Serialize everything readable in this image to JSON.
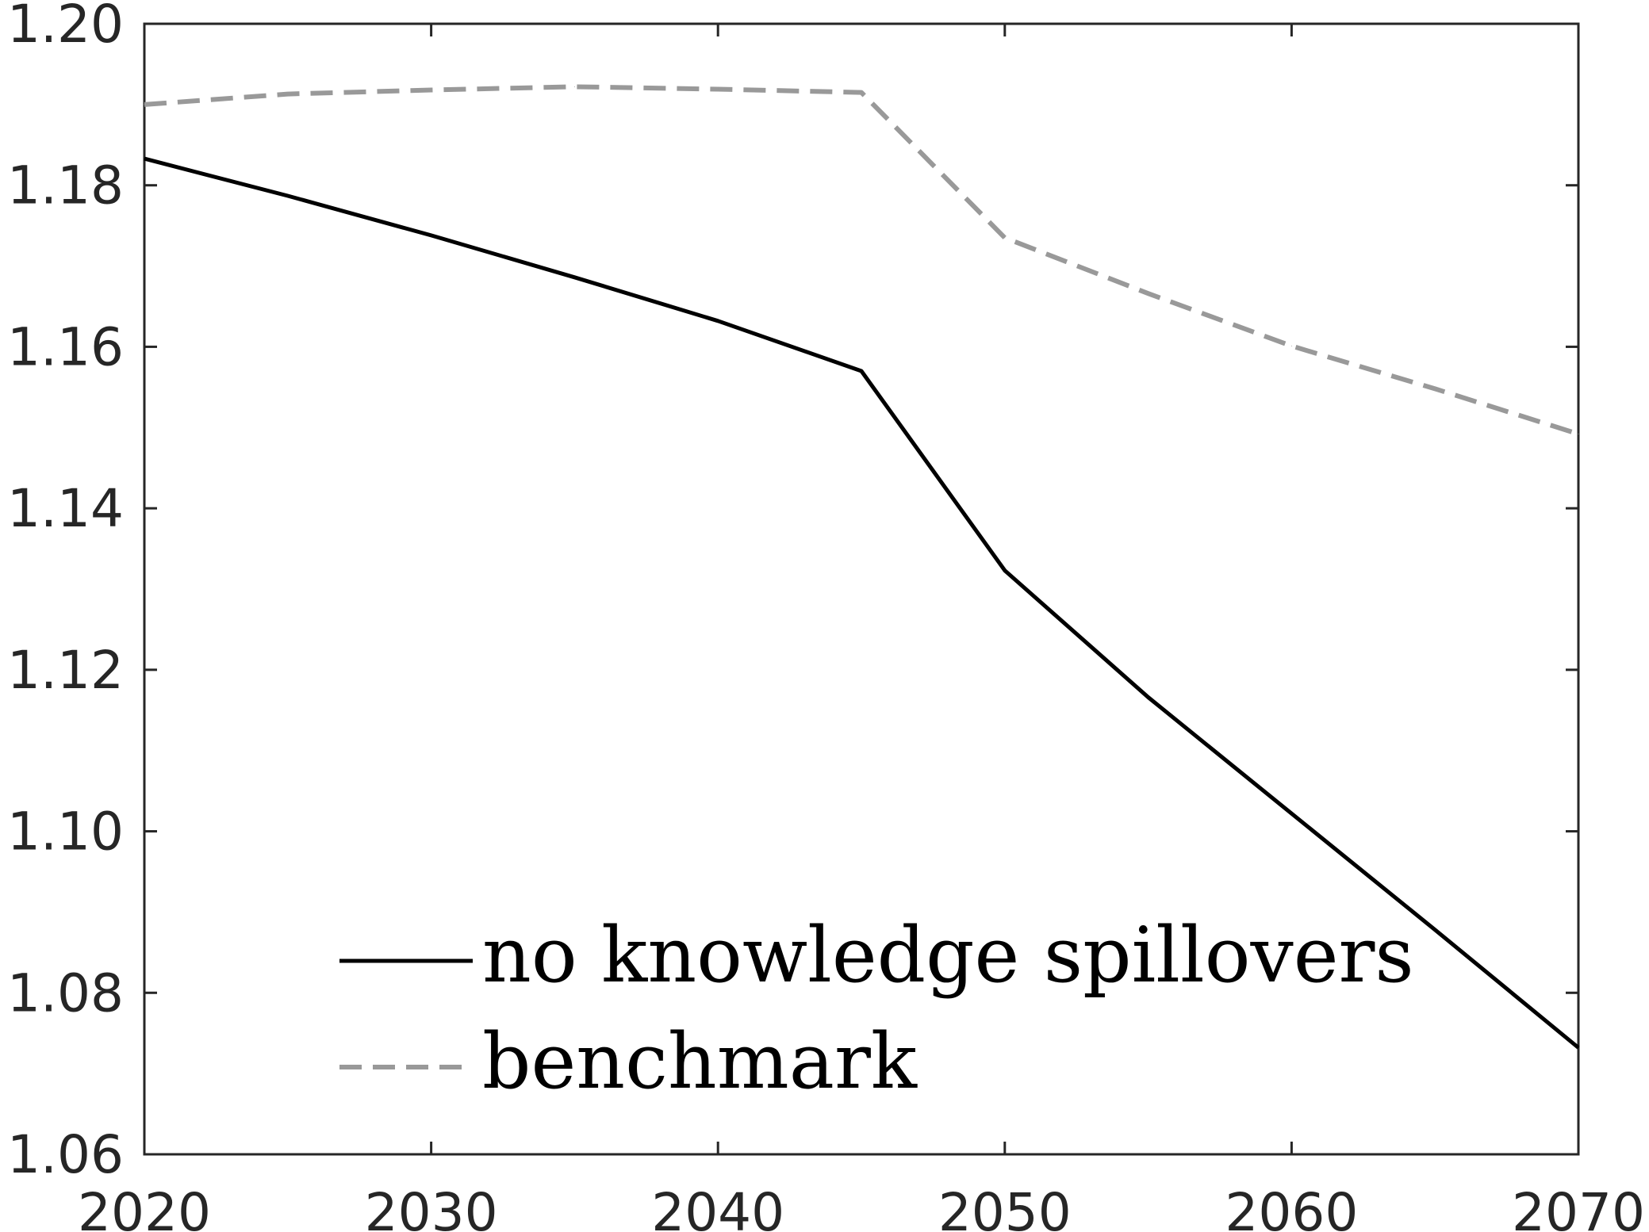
{
  "chart_data": {
    "type": "line",
    "x": [
      2020,
      2025,
      2030,
      2035,
      2040,
      2045,
      2050,
      2055,
      2060,
      2065,
      2070
    ],
    "series": [
      {
        "name": "no knowledge spillovers",
        "color": "#000000",
        "style": "solid",
        "values": [
          1.1833,
          1.1787,
          1.1738,
          1.1686,
          1.1632,
          1.157,
          1.1323,
          1.1166,
          1.1022,
          1.0878,
          1.0732
        ]
      },
      {
        "name": "benchmark",
        "color": "#999999",
        "style": "dashed",
        "values": [
          1.19,
          1.1913,
          1.1918,
          1.1922,
          1.1919,
          1.1915,
          1.1735,
          1.1666,
          1.1601,
          1.1548,
          1.1492
        ]
      }
    ],
    "xlim": [
      2020,
      2070
    ],
    "ylim": [
      1.06,
      1.2
    ],
    "xticks": [
      "2020",
      "2030",
      "2040",
      "2050",
      "2060",
      "2070"
    ],
    "yticks": [
      "1.06",
      "1.08",
      "1.10",
      "1.12",
      "1.14",
      "1.16",
      "1.18",
      "1.20"
    ],
    "grid": false,
    "legend_position": "bottom-center"
  }
}
